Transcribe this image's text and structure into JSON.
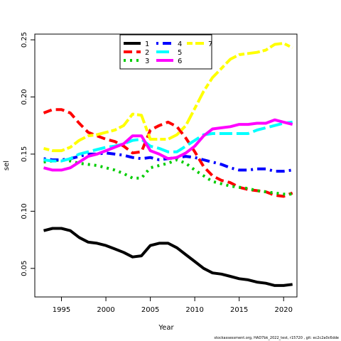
{
  "footer": "stockassessment.org, HAD7bk_2022_test, r15720 , git: ec2c2a0c6dde",
  "chart_data": {
    "type": "line",
    "xlabel": "Year",
    "ylabel": "sel",
    "xlim": [
      1992,
      2021.5
    ],
    "ylim": [
      0.025,
      0.255
    ],
    "x_ticks": [
      1995,
      2000,
      2005,
      2010,
      2015,
      2020
    ],
    "y_ticks": [
      0.05,
      0.1,
      0.15,
      0.2,
      0.25
    ],
    "legend_position": "top-center",
    "x": [
      1993,
      1994,
      1995,
      1996,
      1997,
      1998,
      1999,
      2000,
      2001,
      2002,
      2003,
      2004,
      2005,
      2006,
      2007,
      2008,
      2009,
      2010,
      2011,
      2012,
      2013,
      2014,
      2015,
      2016,
      2017,
      2018,
      2019,
      2020,
      2021
    ],
    "series": [
      {
        "name": "1",
        "color": "#000000",
        "dash": "solid",
        "values": [
          0.083,
          0.085,
          0.085,
          0.083,
          0.077,
          0.073,
          0.072,
          0.07,
          0.067,
          0.064,
          0.06,
          0.061,
          0.07,
          0.072,
          0.072,
          0.068,
          0.062,
          0.056,
          0.05,
          0.046,
          0.045,
          0.043,
          0.041,
          0.04,
          0.038,
          0.037,
          0.035,
          0.035,
          0.036
        ]
      },
      {
        "name": "2",
        "color": "#ff0000",
        "dash": "dashed",
        "values": [
          0.186,
          0.189,
          0.189,
          0.186,
          0.177,
          0.169,
          0.166,
          0.163,
          0.161,
          0.157,
          0.151,
          0.152,
          0.171,
          0.175,
          0.178,
          0.174,
          0.164,
          0.152,
          0.139,
          0.131,
          0.127,
          0.125,
          0.121,
          0.119,
          0.118,
          0.117,
          0.114,
          0.113,
          0.116
        ]
      },
      {
        "name": "3",
        "color": "#00cd00",
        "dash": "dotted",
        "values": [
          0.143,
          0.144,
          0.145,
          0.144,
          0.142,
          0.141,
          0.14,
          0.138,
          0.136,
          0.133,
          0.129,
          0.129,
          0.138,
          0.14,
          0.142,
          0.145,
          0.142,
          0.136,
          0.131,
          0.126,
          0.124,
          0.122,
          0.121,
          0.12,
          0.118,
          0.117,
          0.116,
          0.115,
          0.115
        ]
      },
      {
        "name": "4",
        "color": "#0000ff",
        "dash": "dotdash",
        "values": [
          0.146,
          0.145,
          0.145,
          0.146,
          0.148,
          0.15,
          0.15,
          0.151,
          0.15,
          0.149,
          0.147,
          0.146,
          0.147,
          0.145,
          0.146,
          0.147,
          0.148,
          0.147,
          0.145,
          0.143,
          0.141,
          0.138,
          0.136,
          0.136,
          0.137,
          0.137,
          0.135,
          0.135,
          0.136
        ]
      },
      {
        "name": "5",
        "color": "#00ffff",
        "dash": "longdash",
        "values": [
          0.145,
          0.144,
          0.144,
          0.146,
          0.15,
          0.152,
          0.154,
          0.156,
          0.157,
          0.159,
          0.162,
          0.163,
          0.157,
          0.155,
          0.152,
          0.152,
          0.157,
          0.162,
          0.167,
          0.168,
          0.168,
          0.168,
          0.168,
          0.168,
          0.171,
          0.173,
          0.175,
          0.177,
          0.178
        ]
      },
      {
        "name": "6",
        "color": "#ff00ff",
        "dash": "solid",
        "values": [
          0.138,
          0.136,
          0.136,
          0.138,
          0.143,
          0.148,
          0.15,
          0.153,
          0.156,
          0.159,
          0.166,
          0.166,
          0.153,
          0.15,
          0.146,
          0.147,
          0.151,
          0.157,
          0.166,
          0.172,
          0.173,
          0.174,
          0.176,
          0.176,
          0.177,
          0.177,
          0.18,
          0.178,
          0.176
        ]
      },
      {
        "name": "7",
        "color": "#ffff00",
        "dash": "twodash",
        "values": [
          0.155,
          0.153,
          0.153,
          0.156,
          0.162,
          0.166,
          0.167,
          0.169,
          0.171,
          0.175,
          0.185,
          0.184,
          0.163,
          0.163,
          0.163,
          0.167,
          0.175,
          0.19,
          0.205,
          0.217,
          0.225,
          0.233,
          0.237,
          0.238,
          0.239,
          0.241,
          0.246,
          0.247,
          0.243
        ]
      }
    ]
  }
}
